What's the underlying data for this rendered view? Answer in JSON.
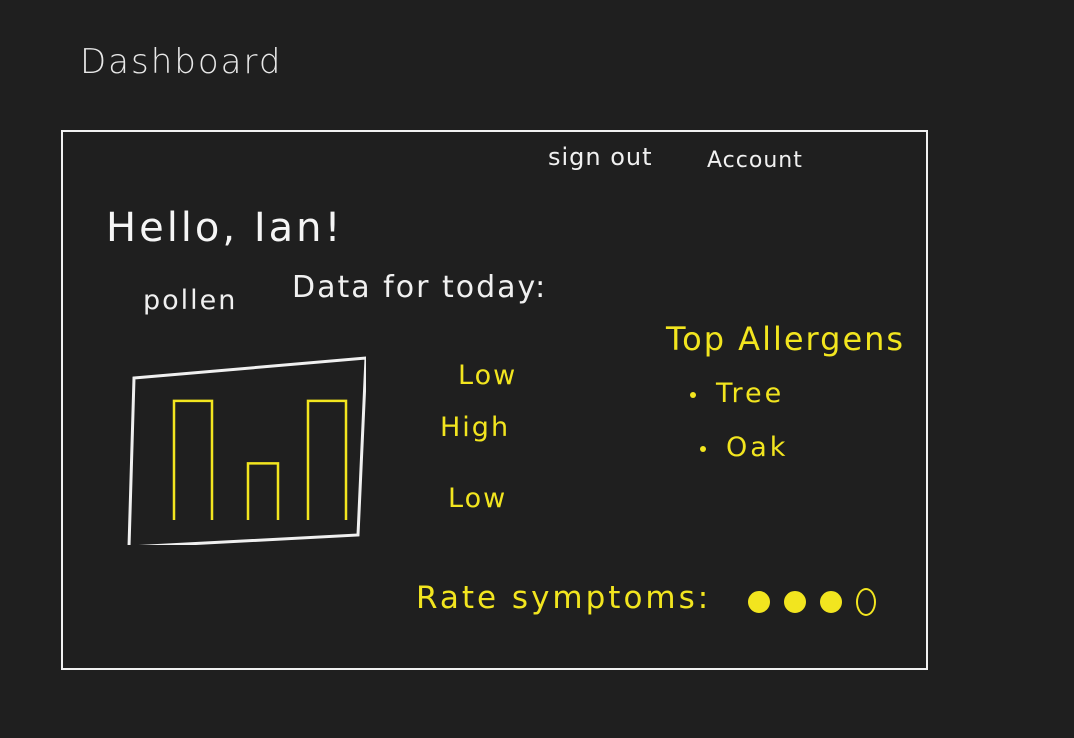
{
  "page": {
    "title": "Dashboard"
  },
  "nav": {
    "sign_out": "sign out",
    "account": "Account"
  },
  "main": {
    "greeting": "Hello, Ian!",
    "subtitle_a": "pollen",
    "subtitle_b": "Data for today:"
  },
  "chart_data": {
    "type": "bar",
    "categories": [
      "",
      "",
      ""
    ],
    "values": [
      5,
      2,
      5
    ],
    "ylim": [
      0,
      6
    ],
    "bar_color": "#f2e51f"
  },
  "levels": [
    "Low",
    "High",
    "Low"
  ],
  "allergens": {
    "title": "Top Allergens",
    "items": [
      "Tree",
      "Oak"
    ]
  },
  "symptoms": {
    "label": "Rate symptoms:",
    "rating": 3,
    "max": 4
  },
  "colors": {
    "background": "#1f1f1f",
    "ink": "#f0f0f0",
    "accent": "#f2e51f"
  }
}
